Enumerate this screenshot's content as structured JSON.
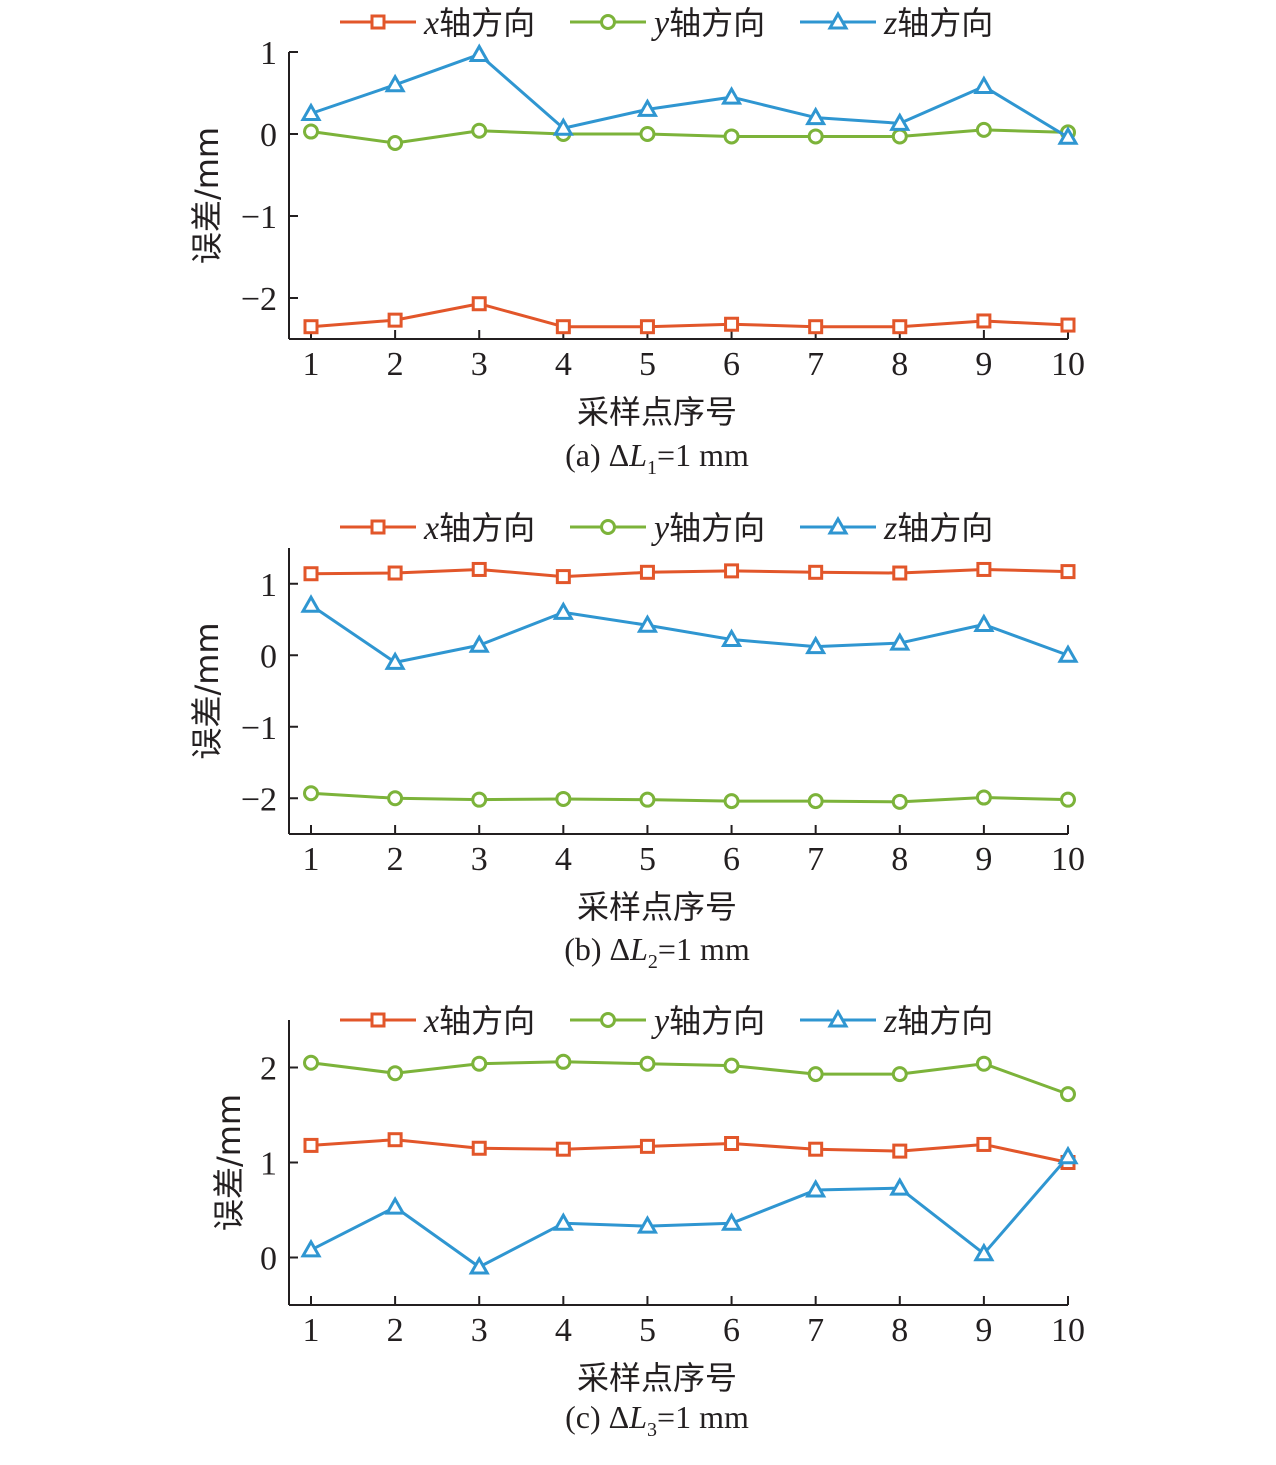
{
  "chart_data": [
    {
      "type": "line",
      "caption": {
        "label": "(a)",
        "delta": "Δ",
        "var": "L",
        "sub": "1",
        "rest": "=1 mm"
      },
      "xlabel": "采样点序号",
      "ylabel": "误差/mm",
      "categories": [
        "1",
        "2",
        "3",
        "4",
        "5",
        "6",
        "7",
        "8",
        "9",
        "10"
      ],
      "yticks": [
        -2,
        -1,
        0,
        1
      ],
      "ytick_labels": [
        "−2",
        "−1",
        "0",
        "1"
      ],
      "ylim": [
        -2.5,
        1.0
      ],
      "legend_position": "top",
      "series": [
        {
          "name": "x轴方向",
          "var": "x",
          "suffix": "轴方向",
          "color": "#e2562a",
          "marker": "square",
          "values": [
            -2.35,
            -2.27,
            -2.07,
            -2.35,
            -2.35,
            -2.32,
            -2.35,
            -2.35,
            -2.28,
            -2.33
          ]
        },
        {
          "name": "y轴方向",
          "var": "y",
          "suffix": "轴方向",
          "color": "#7cb33a",
          "marker": "circle",
          "values": [
            0.03,
            -0.11,
            0.04,
            0.0,
            0.0,
            -0.03,
            -0.03,
            -0.03,
            0.05,
            0.02
          ]
        },
        {
          "name": "z轴方向",
          "var": "z",
          "suffix": "轴方向",
          "color": "#2f96d1",
          "marker": "triangle",
          "values": [
            0.25,
            0.6,
            0.97,
            0.07,
            0.3,
            0.45,
            0.2,
            0.13,
            0.58,
            -0.04
          ]
        }
      ]
    },
    {
      "type": "line",
      "caption": {
        "label": "(b)",
        "delta": "Δ",
        "var": "L",
        "sub": "2",
        "rest": "=1 mm"
      },
      "xlabel": "采样点序号",
      "ylabel": "误差/mm",
      "categories": [
        "1",
        "2",
        "3",
        "4",
        "5",
        "6",
        "7",
        "8",
        "9",
        "10"
      ],
      "yticks": [
        -2,
        -1,
        0,
        1
      ],
      "ytick_labels": [
        "−2",
        "−1",
        "0",
        "1"
      ],
      "ylim": [
        -2.5,
        1.5
      ],
      "legend_position": "top",
      "series": [
        {
          "name": "x轴方向",
          "var": "x",
          "suffix": "轴方向",
          "color": "#e2562a",
          "marker": "square",
          "values": [
            1.14,
            1.15,
            1.2,
            1.1,
            1.16,
            1.18,
            1.16,
            1.15,
            1.2,
            1.17
          ]
        },
        {
          "name": "y轴方向",
          "var": "y",
          "suffix": "轴方向",
          "color": "#7cb33a",
          "marker": "circle",
          "values": [
            -1.93,
            -2.0,
            -2.02,
            -2.01,
            -2.02,
            -2.04,
            -2.04,
            -2.05,
            -1.99,
            -2.02
          ]
        },
        {
          "name": "z轴方向",
          "var": "z",
          "suffix": "轴方向",
          "color": "#2f96d1",
          "marker": "triangle",
          "values": [
            0.7,
            -0.1,
            0.14,
            0.6,
            0.42,
            0.22,
            0.12,
            0.17,
            0.43,
            0.0
          ]
        }
      ]
    },
    {
      "type": "line",
      "caption": {
        "label": "(c)",
        "delta": "Δ",
        "var": "L",
        "sub": "3",
        "rest": "=1 mm"
      },
      "xlabel": "采样点序号",
      "ylabel": "误差/mm",
      "categories": [
        "1",
        "2",
        "3",
        "4",
        "5",
        "6",
        "7",
        "8",
        "9",
        "10"
      ],
      "yticks": [
        0,
        1,
        2
      ],
      "ytick_labels": [
        "0",
        "1",
        "2"
      ],
      "ylim": [
        -0.5,
        2.5
      ],
      "legend_position": "top",
      "series": [
        {
          "name": "x轴方向",
          "var": "x",
          "suffix": "轴方向",
          "color": "#e2562a",
          "marker": "square",
          "values": [
            1.18,
            1.24,
            1.15,
            1.14,
            1.17,
            1.2,
            1.14,
            1.12,
            1.19,
            1.0
          ]
        },
        {
          "name": "y轴方向",
          "var": "y",
          "suffix": "轴方向",
          "color": "#7cb33a",
          "marker": "circle",
          "values": [
            2.05,
            1.94,
            2.04,
            2.06,
            2.04,
            2.02,
            1.93,
            1.93,
            2.04,
            1.72
          ]
        },
        {
          "name": "z轴方向",
          "var": "z",
          "suffix": "轴方向",
          "color": "#2f96d1",
          "marker": "triangle",
          "values": [
            0.08,
            0.53,
            -0.1,
            0.36,
            0.33,
            0.36,
            0.71,
            0.73,
            0.04,
            1.06
          ]
        }
      ]
    }
  ]
}
